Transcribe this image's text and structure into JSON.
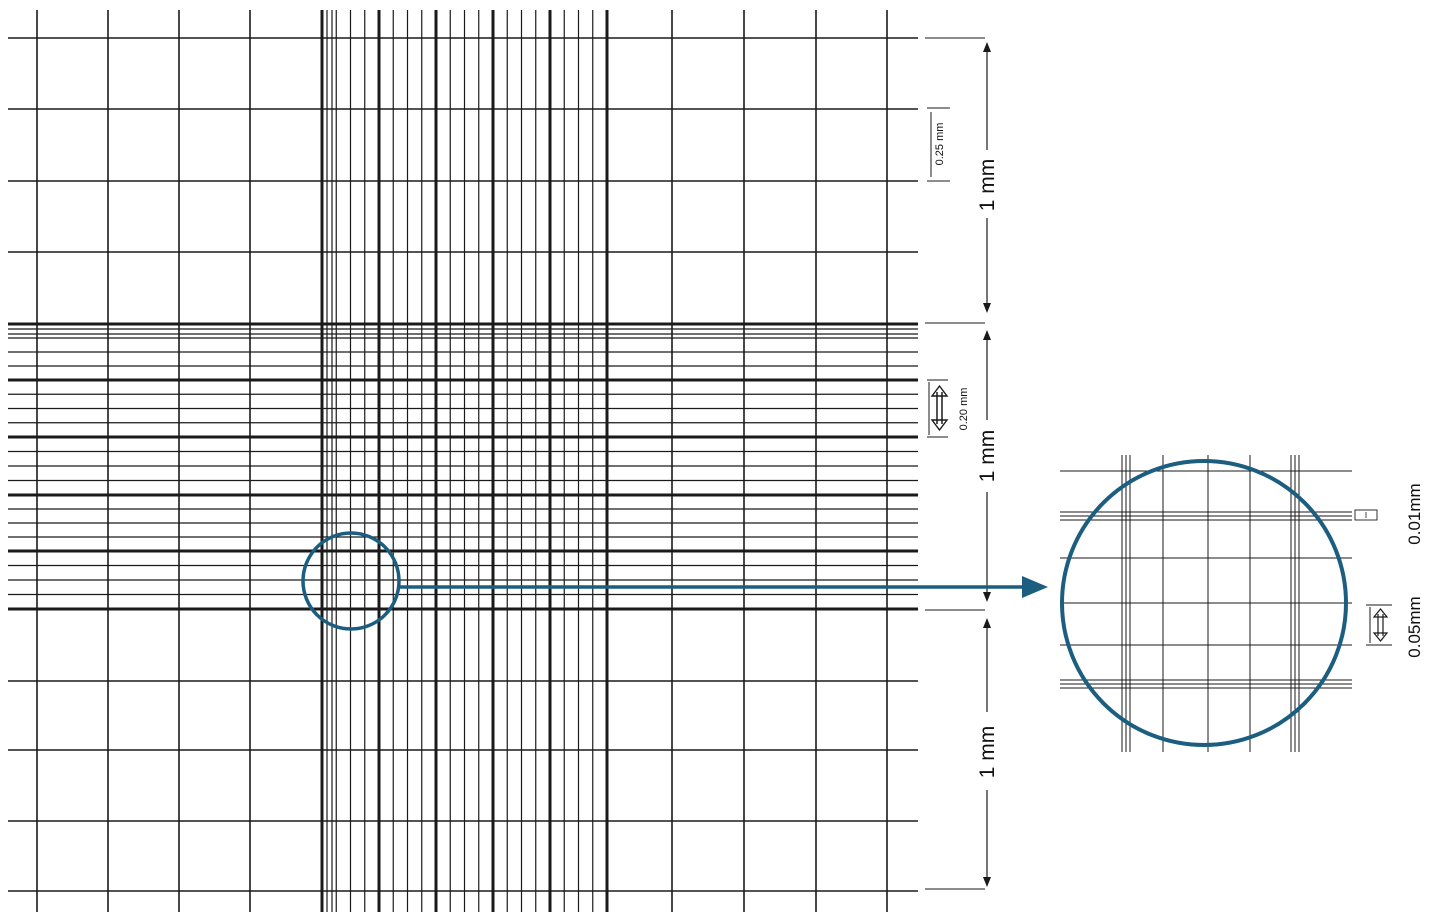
{
  "colors": {
    "grid_line": "#1a1a1a",
    "highlight": "#1c5e80",
    "background": "#ffffff"
  },
  "dimensions": {
    "top_block": "1 mm",
    "middle_block": "1 mm",
    "bottom_block": "1 mm",
    "large_square": "0.25 mm",
    "small_square": "0.20 mm"
  },
  "inset": {
    "fine_spacing": "0.01mm",
    "square_spacing": "0.05mm"
  },
  "icons": {
    "magnifier_circle": "circle-highlight-icon",
    "pointer_arrow": "arrow-right-icon",
    "double_arrow": "double-headed-arrow-icon"
  }
}
